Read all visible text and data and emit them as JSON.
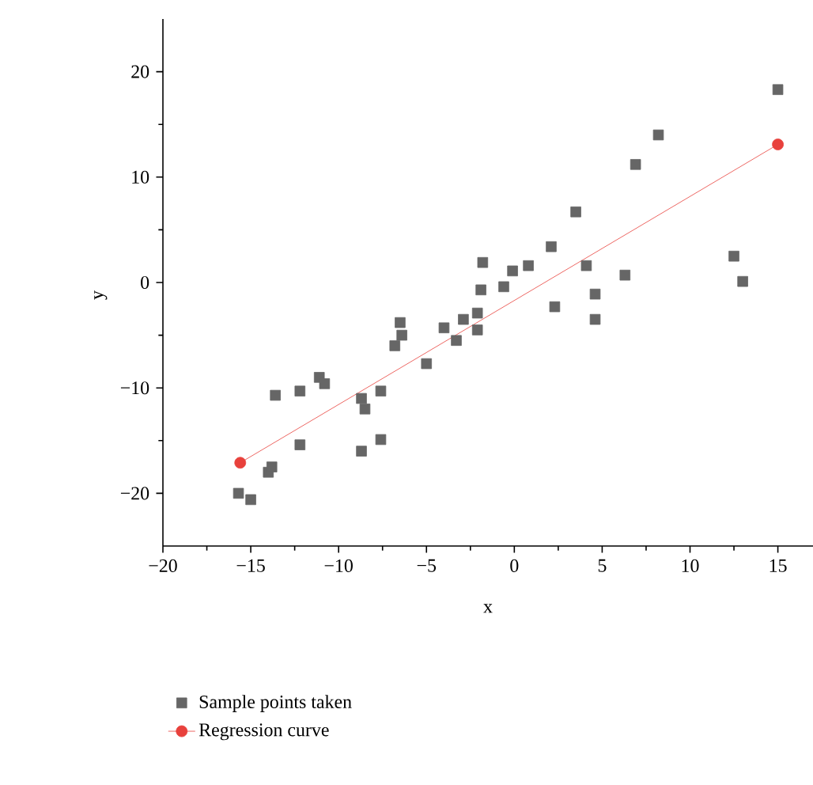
{
  "chart_data": {
    "type": "scatter",
    "xlabel": "x",
    "ylabel": "y",
    "xlim": [
      -20,
      17
    ],
    "ylim": [
      -25,
      25
    ],
    "xticks": [
      {
        "value": -20,
        "label": "−20"
      },
      {
        "value": -15,
        "label": "−15"
      },
      {
        "value": -10,
        "label": "−10"
      },
      {
        "value": -5,
        "label": "−5"
      },
      0,
      5,
      10,
      15
    ],
    "yticks": [
      {
        "value": -20,
        "label": "−20"
      },
      {
        "value": -10,
        "label": "−10"
      },
      0,
      10,
      20
    ],
    "grid": false,
    "legend": "bottom left",
    "series": [
      {
        "name": "Sample points taken",
        "marker": "square",
        "color": "#666666",
        "x": [
          -15.7,
          -15,
          -14,
          -13.8,
          -13.6,
          -12.2,
          -12.2,
          -11.1,
          -10.8,
          -8.7,
          -8.5,
          -8.7,
          -7.6,
          -7.6,
          -6.8,
          -6.5,
          -6.4,
          -5,
          -4,
          -3.3,
          -2.9,
          -2.1,
          -2.1,
          -1.9,
          -1.8,
          -0.6,
          -0.1,
          0.8,
          2.1,
          2.3,
          3.5,
          4.1,
          4.6,
          4.6,
          6.3,
          6.9,
          8.2,
          12.5,
          13,
          15
        ],
        "values": [
          -20,
          -20.6,
          -18,
          -17.5,
          -10.7,
          -10.3,
          -15.4,
          -9,
          -9.6,
          -11,
          -12,
          -16,
          -10.3,
          -14.9,
          -6,
          -3.8,
          -5,
          -7.7,
          -4.3,
          -5.5,
          -3.5,
          -2.9,
          -4.5,
          -0.7,
          1.9,
          -0.4,
          1.1,
          1.6,
          3.4,
          -2.3,
          6.7,
          1.6,
          -1.1,
          -3.5,
          0.7,
          11.2,
          14,
          2.5,
          0.1,
          18.3
        ]
      },
      {
        "name": "Regression curve",
        "type": "line",
        "marker": "circle",
        "color": "#e8413c",
        "x": [
          -15.6,
          15
        ],
        "values": [
          -17.1,
          13.1
        ]
      }
    ]
  }
}
